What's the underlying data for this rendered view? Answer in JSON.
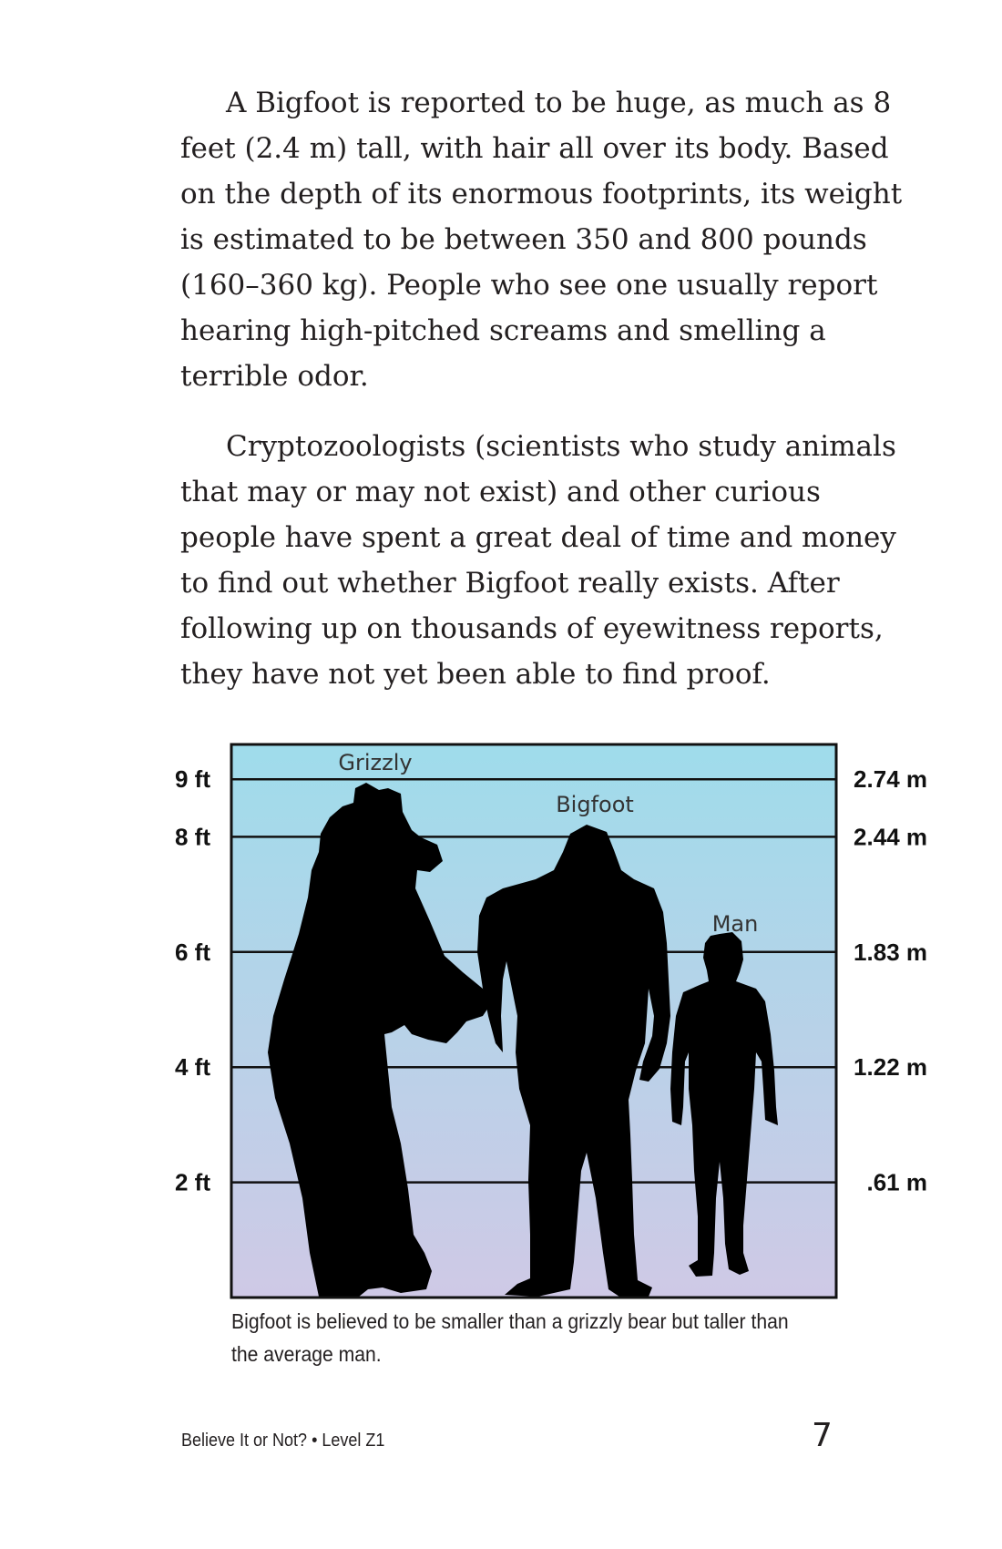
{
  "paragraphs": [
    "A Bigfoot is reported to be huge, as much as 8 feet (2.4 m) tall, with hair all over its body. Based on the depth of its enormous footprints, its weight is estimated to be between 350 and 800 pounds (160–360 kg). People who see one usually report hearing high-pitched screams and smelling a terrible odor.",
    "Cryptozoologists (scientists who study animals that may or may not exist) and other curious people have spent a great deal of time and money to find out whether Bigfoot really exists. After following up on thousands of eyewitness reports, they have not yet been able to find proof."
  ],
  "figure": {
    "caption": "Bigfoot is believed to be smaller than a grizzly bear but taller than the average man.",
    "background_top": "#9fdceb",
    "background_bottom": "#cfc9e6",
    "silhouette_color": "#000000"
  },
  "chart_data": {
    "type": "bar",
    "categories": [
      "Grizzly",
      "Bigfoot",
      "Man"
    ],
    "values": [
      9.6,
      8.2,
      6.0
    ],
    "ylim": [
      0,
      9.6
    ],
    "yticks_ft": [
      {
        "value": 2,
        "label": "2 ft"
      },
      {
        "value": 4,
        "label": "4 ft"
      },
      {
        "value": 6,
        "label": "6 ft"
      },
      {
        "value": 8,
        "label": "8 ft"
      },
      {
        "value": 9,
        "label": "9 ft"
      }
    ],
    "yticks_m": [
      {
        "value": 2,
        "label": ".61 m"
      },
      {
        "value": 4,
        "label": "1.22 m"
      },
      {
        "value": 6,
        "label": "1.83 m"
      },
      {
        "value": 8,
        "label": "2.44 m"
      },
      {
        "value": 9,
        "label": "2.74 m"
      }
    ],
    "grid": true
  },
  "footer": {
    "title": "Believe It or Not? • Level Z1",
    "page_number": "7"
  }
}
